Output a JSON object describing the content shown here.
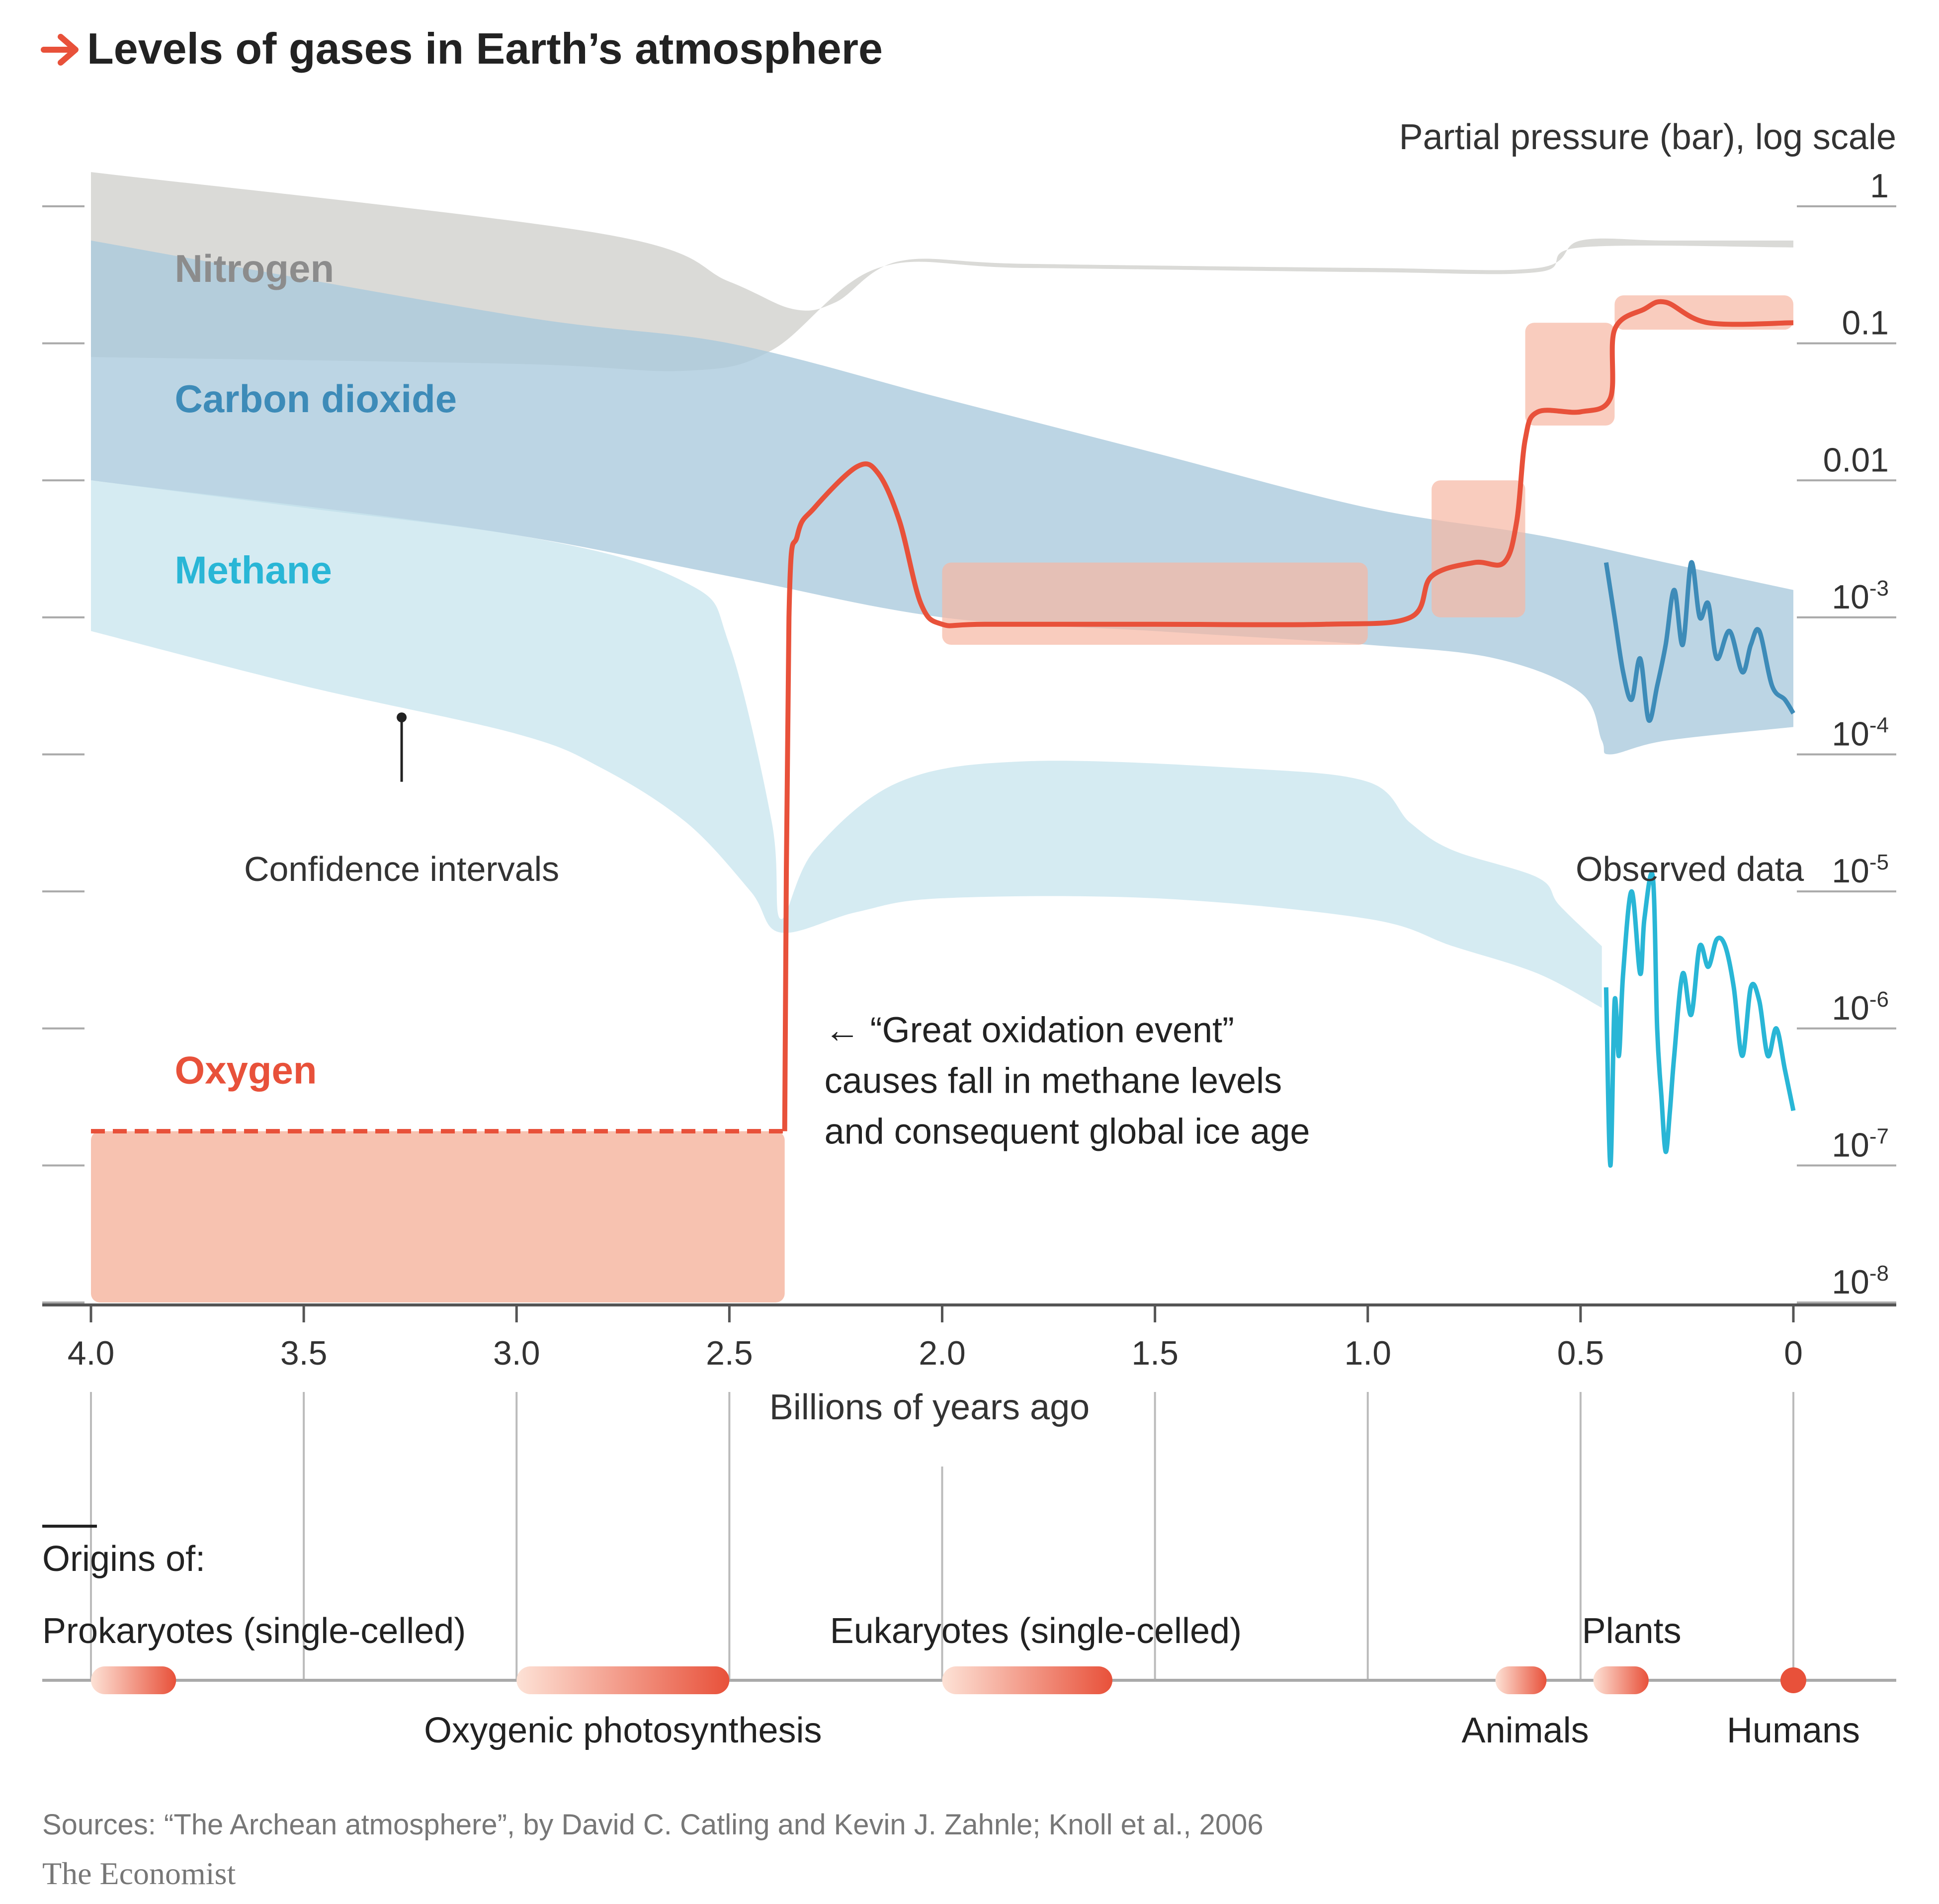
{
  "header": {
    "title": "Levels of gases in Earth’s atmosphere",
    "y_axis_title": "Partial pressure (bar), log scale"
  },
  "chart_data": {
    "type": "area",
    "title": "Levels of gases in Earth’s atmosphere",
    "xlabel": "Billions of years ago",
    "ylabel": "Partial pressure (bar), log scale",
    "x_scale": "linear, reversed (4.0 at left, 0 at right)",
    "y_scale": "log10",
    "xlim": [
      4.0,
      0
    ],
    "ylim_log10": [
      -8,
      0.2
    ],
    "x_ticks": [
      {
        "value": 4.0,
        "label": "4.0"
      },
      {
        "value": 3.5,
        "label": "3.5"
      },
      {
        "value": 3.0,
        "label": "3.0"
      },
      {
        "value": 2.5,
        "label": "2.5"
      },
      {
        "value": 2.0,
        "label": "2.0"
      },
      {
        "value": 1.5,
        "label": "1.5"
      },
      {
        "value": 1.0,
        "label": "1.0"
      },
      {
        "value": 0.5,
        "label": "0.5"
      },
      {
        "value": 0,
        "label": "0"
      }
    ],
    "y_ticks": [
      {
        "log10": 0,
        "base": "1",
        "exp": ""
      },
      {
        "log10": -1,
        "base": "0.1",
        "exp": ""
      },
      {
        "log10": -2,
        "base": "0.01",
        "exp": ""
      },
      {
        "log10": -3,
        "base": "10",
        "exp": "-3"
      },
      {
        "log10": -4,
        "base": "10",
        "exp": "-4"
      },
      {
        "log10": -5,
        "base": "10",
        "exp": "-5"
      },
      {
        "log10": -6,
        "base": "10",
        "exp": "-6"
      },
      {
        "log10": -7,
        "base": "10",
        "exp": "-7"
      },
      {
        "log10": -8,
        "base": "10",
        "exp": "-8"
      }
    ],
    "series": [
      {
        "name": "Nitrogen",
        "kind": "confidence band",
        "color": "#cfcfcc",
        "label_color": "#8c8c8c",
        "label_at": [
          3.85,
          -0.45
        ],
        "upper": [
          [
            4.0,
            0.25
          ],
          [
            2.8,
            -0.2
          ],
          [
            2.5,
            -0.55
          ],
          [
            2.35,
            -0.75
          ],
          [
            2.25,
            -0.7
          ],
          [
            2.1,
            -0.4
          ],
          [
            1.8,
            -0.42
          ],
          [
            1.0,
            -0.45
          ],
          [
            0.6,
            -0.45
          ],
          [
            0.5,
            -0.25
          ],
          [
            0.3,
            -0.25
          ],
          [
            0.0,
            -0.25
          ]
        ],
        "lower": [
          [
            4.0,
            -1.1
          ],
          [
            3.0,
            -1.15
          ],
          [
            2.6,
            -1.2
          ],
          [
            2.4,
            -1.05
          ],
          [
            2.15,
            -0.45
          ],
          [
            1.8,
            -0.45
          ],
          [
            1.0,
            -0.48
          ],
          [
            0.6,
            -0.48
          ],
          [
            0.5,
            -0.3
          ],
          [
            0.0,
            -0.3
          ]
        ]
      },
      {
        "name": "Carbon dioxide",
        "kind": "confidence band",
        "color": "#a9c9dc",
        "label_color": "#3d8bb8",
        "label_at": [
          3.85,
          -1.4
        ],
        "upper": [
          [
            4.0,
            -0.25
          ],
          [
            3.0,
            -0.8
          ],
          [
            2.5,
            -1.0
          ],
          [
            2.0,
            -1.4
          ],
          [
            1.5,
            -1.8
          ],
          [
            1.0,
            -2.2
          ],
          [
            0.6,
            -2.4
          ],
          [
            0.3,
            -2.6
          ],
          [
            0.0,
            -2.8
          ]
        ],
        "lower": [
          [
            4.0,
            -2.0
          ],
          [
            3.5,
            -2.2
          ],
          [
            3.0,
            -2.4
          ],
          [
            2.5,
            -2.7
          ],
          [
            2.0,
            -3.0
          ],
          [
            1.5,
            -3.1
          ],
          [
            1.0,
            -3.2
          ],
          [
            0.7,
            -3.3
          ],
          [
            0.5,
            -3.55
          ],
          [
            0.45,
            -3.9
          ],
          [
            0.43,
            -4.0
          ],
          [
            0.3,
            -3.9
          ],
          [
            0.0,
            -3.8
          ]
        ]
      },
      {
        "name": "Methane",
        "kind": "confidence band",
        "color": "#c9e5ee",
        "label_color": "#29b6d6",
        "label_at": [
          3.85,
          -2.65
        ],
        "upper": [
          [
            4.0,
            -2.0
          ],
          [
            3.0,
            -2.4
          ],
          [
            2.6,
            -2.75
          ],
          [
            2.5,
            -3.2
          ],
          [
            2.4,
            -4.5
          ],
          [
            2.38,
            -5.2
          ],
          [
            2.3,
            -4.7
          ],
          [
            2.1,
            -4.2
          ],
          [
            1.8,
            -4.05
          ],
          [
            1.3,
            -4.1
          ],
          [
            1.0,
            -4.2
          ],
          [
            0.9,
            -4.5
          ],
          [
            0.8,
            -4.7
          ],
          [
            0.6,
            -4.9
          ],
          [
            0.55,
            -5.1
          ],
          [
            0.45,
            -5.4
          ]
        ],
        "lower": [
          [
            4.0,
            -3.1
          ],
          [
            3.5,
            -3.5
          ],
          [
            3.0,
            -3.85
          ],
          [
            2.8,
            -4.1
          ],
          [
            2.6,
            -4.5
          ],
          [
            2.45,
            -5.0
          ],
          [
            2.38,
            -5.3
          ],
          [
            2.2,
            -5.15
          ],
          [
            2.0,
            -5.05
          ],
          [
            1.5,
            -5.05
          ],
          [
            1.0,
            -5.2
          ],
          [
            0.8,
            -5.4
          ],
          [
            0.6,
            -5.6
          ],
          [
            0.45,
            -5.85
          ]
        ]
      },
      {
        "name": "Oxygen",
        "kind": "line with confidence band",
        "color": "#e8513a",
        "band_color": "#f6b7a2",
        "label_color": "#e8513a",
        "label_at": [
          3.85,
          -6.3
        ],
        "dashed": [
          [
            4.0,
            -6.75
          ],
          [
            2.37,
            -6.75
          ]
        ],
        "line": [
          [
            2.37,
            -6.75
          ],
          [
            2.36,
            -3.0
          ],
          [
            2.34,
            -2.4
          ],
          [
            2.3,
            -2.2
          ],
          [
            2.2,
            -1.9
          ],
          [
            2.15,
            -1.95
          ],
          [
            2.1,
            -2.3
          ],
          [
            2.05,
            -2.9
          ],
          [
            2.0,
            -3.05
          ],
          [
            1.9,
            -3.05
          ],
          [
            1.5,
            -3.05
          ],
          [
            1.1,
            -3.05
          ],
          [
            0.9,
            -3.0
          ],
          [
            0.85,
            -2.7
          ],
          [
            0.75,
            -2.6
          ],
          [
            0.68,
            -2.6
          ],
          [
            0.65,
            -2.3
          ],
          [
            0.63,
            -1.7
          ],
          [
            0.6,
            -1.5
          ],
          [
            0.5,
            -1.5
          ],
          [
            0.43,
            -1.4
          ],
          [
            0.42,
            -0.9
          ],
          [
            0.35,
            -0.75
          ],
          [
            0.3,
            -0.7
          ],
          [
            0.2,
            -0.85
          ],
          [
            0.0,
            -0.85
          ]
        ],
        "bands": [
          {
            "x": [
              4.0,
              2.37
            ],
            "y": [
              -8.0,
              -6.75
            ]
          },
          {
            "x": [
              2.0,
              1.0
            ],
            "y": [
              -3.2,
              -2.6
            ]
          },
          {
            "x": [
              0.85,
              0.63
            ],
            "y": [
              -3.0,
              -2.0
            ]
          },
          {
            "x": [
              0.63,
              0.42
            ],
            "y": [
              -1.6,
              -0.85
            ]
          },
          {
            "x": [
              0.42,
              0.0
            ],
            "y": [
              -0.9,
              -0.65
            ]
          }
        ]
      },
      {
        "name": "Observed CO2",
        "kind": "observed line",
        "color": "#3d8bb8",
        "line": [
          [
            0.44,
            -2.6
          ],
          [
            0.42,
            -3.0
          ],
          [
            0.4,
            -3.4
          ],
          [
            0.38,
            -3.6
          ],
          [
            0.36,
            -3.3
          ],
          [
            0.34,
            -3.75
          ],
          [
            0.32,
            -3.5
          ],
          [
            0.3,
            -3.2
          ],
          [
            0.28,
            -2.8
          ],
          [
            0.26,
            -3.2
          ],
          [
            0.24,
            -2.6
          ],
          [
            0.22,
            -3.0
          ],
          [
            0.2,
            -2.9
          ],
          [
            0.18,
            -3.3
          ],
          [
            0.15,
            -3.1
          ],
          [
            0.12,
            -3.4
          ],
          [
            0.1,
            -3.2
          ],
          [
            0.08,
            -3.1
          ],
          [
            0.05,
            -3.5
          ],
          [
            0.02,
            -3.6
          ],
          [
            0.0,
            -3.7
          ]
        ]
      },
      {
        "name": "Observed methane",
        "kind": "observed line",
        "color": "#29b6d6",
        "line": [
          [
            0.44,
            -5.7
          ],
          [
            0.43,
            -7.0
          ],
          [
            0.42,
            -5.8
          ],
          [
            0.41,
            -6.2
          ],
          [
            0.4,
            -5.6
          ],
          [
            0.38,
            -5.0
          ],
          [
            0.36,
            -5.6
          ],
          [
            0.35,
            -5.2
          ],
          [
            0.33,
            -4.9
          ],
          [
            0.32,
            -6.0
          ],
          [
            0.31,
            -6.5
          ],
          [
            0.3,
            -6.9
          ],
          [
            0.29,
            -6.6
          ],
          [
            0.28,
            -6.2
          ],
          [
            0.26,
            -5.6
          ],
          [
            0.24,
            -5.9
          ],
          [
            0.22,
            -5.4
          ],
          [
            0.2,
            -5.55
          ],
          [
            0.18,
            -5.35
          ],
          [
            0.16,
            -5.4
          ],
          [
            0.14,
            -5.7
          ],
          [
            0.12,
            -6.2
          ],
          [
            0.1,
            -5.7
          ],
          [
            0.08,
            -5.8
          ],
          [
            0.06,
            -6.2
          ],
          [
            0.04,
            -6.0
          ],
          [
            0.02,
            -6.3
          ],
          [
            0.0,
            -6.6
          ]
        ]
      }
    ],
    "annotations": {
      "confidence": {
        "text": "Confidence intervals",
        "x": 3.27,
        "y": -4.85,
        "point": [
          3.27,
          -3.73
        ],
        "stem_end": [
          3.27,
          -4.2
        ]
      },
      "observed": {
        "text": "Observed data",
        "x": 0.22,
        "y": -4.85
      },
      "goe_lines": [
        "← “Great oxidation event”",
        "causes fall in methane levels",
        "and consequent global ice age"
      ],
      "goe_at": [
        2.3,
        -6.1
      ]
    },
    "origins_title": "Origins of:",
    "origins": [
      {
        "name": "Prokaryotes (single-celled)",
        "range": [
          4.0,
          3.8
        ],
        "label_pos": "above-left",
        "label_anchor_x": 3.9
      },
      {
        "name": "Oxygenic photosynthesis",
        "range": [
          3.0,
          2.5
        ],
        "label_pos": "below",
        "label_anchor_x": 2.75
      },
      {
        "name": "Eukaryotes (single-celled)",
        "range": [
          2.0,
          1.6
        ],
        "label_pos": "above",
        "label_anchor_x": 1.78
      },
      {
        "name": "Animals",
        "range": [
          0.7,
          0.58
        ],
        "label_pos": "below",
        "label_anchor_x": 0.63
      },
      {
        "name": "Plants",
        "range": [
          0.47,
          0.34
        ],
        "label_pos": "above",
        "label_anchor_x": 0.38
      },
      {
        "name": "Humans",
        "range": [
          0.0,
          0.0
        ],
        "label_pos": "below",
        "label_anchor_x": 0.0
      }
    ]
  },
  "footer": {
    "sources": "Sources: “The Archean atmosphere”, by David C. Catling and Kevin J. Zahnle; Knoll et al., 2006",
    "brand": "The Economist"
  },
  "colors": {
    "accent": "#e8513a",
    "text": "#222222",
    "axis": "#555555",
    "grid_tick": "#aaaaaa"
  }
}
